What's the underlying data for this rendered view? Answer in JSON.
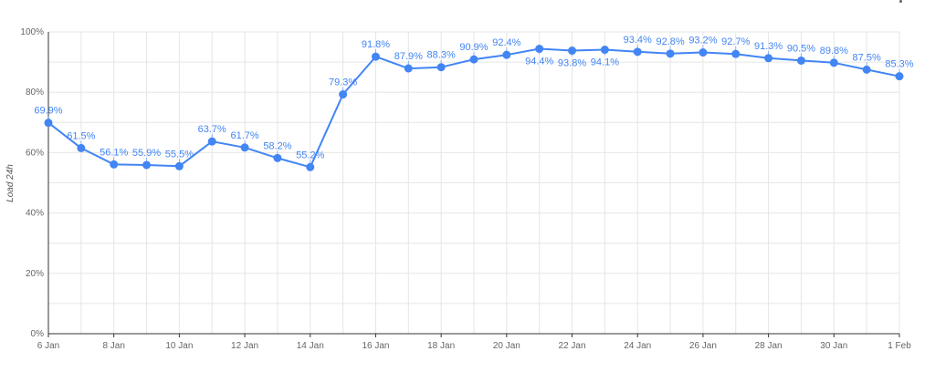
{
  "menu": {
    "icon": "more-vert-icon"
  },
  "colors": {
    "series": "#4285f4",
    "label": "#4285f4",
    "grid": "#e6e6e6",
    "axis": "#333333",
    "tick": "#666666"
  },
  "chart_data": {
    "type": "line",
    "title": "",
    "xlabel": "",
    "ylabel": "Load 24h",
    "ylim": [
      0,
      100
    ],
    "yticks": [
      "0%",
      "20%",
      "40%",
      "60%",
      "80%",
      "100%"
    ],
    "xtick_labels": [
      "6 Jan",
      "8 Jan",
      "10 Jan",
      "12 Jan",
      "14 Jan",
      "16 Jan",
      "18 Jan",
      "20 Jan",
      "22 Jan",
      "24 Jan",
      "26 Jan",
      "28 Jan",
      "30 Jan",
      "1 Feb"
    ],
    "grid": true,
    "legend": "none",
    "x": [
      "6 Jan",
      "7 Jan",
      "8 Jan",
      "9 Jan",
      "10 Jan",
      "11 Jan",
      "12 Jan",
      "13 Jan",
      "14 Jan",
      "15 Jan",
      "16 Jan",
      "17 Jan",
      "18 Jan",
      "19 Jan",
      "20 Jan",
      "21 Jan",
      "22 Jan",
      "23 Jan",
      "24 Jan",
      "25 Jan",
      "26 Jan",
      "27 Jan",
      "28 Jan",
      "29 Jan",
      "30 Jan",
      "31 Jan",
      "1 Feb"
    ],
    "series": [
      {
        "values": [
          69.9,
          61.5,
          56.1,
          55.9,
          55.5,
          63.7,
          61.7,
          58.2,
          55.2,
          79.3,
          91.8,
          87.9,
          88.3,
          90.9,
          92.4,
          94.4,
          93.8,
          94.1,
          93.4,
          92.8,
          93.2,
          92.7,
          91.3,
          90.5,
          89.8,
          87.5,
          85.3
        ],
        "labels": [
          "69.9%",
          "61.5%",
          "56.1%",
          "55.9%",
          "55.5%",
          "63.7%",
          "61.7%",
          "58.2%",
          "55.2%",
          "79.3%",
          "91.8%",
          "87.9%",
          "88.3%",
          "90.9%",
          "92.4%",
          "94.4%",
          "93.8%",
          "94.1%",
          "93.4%",
          "92.8%",
          "93.2%",
          "92.7%",
          "91.3%",
          "90.5%",
          "89.8%",
          "87.5%",
          "85.3%"
        ]
      }
    ]
  }
}
